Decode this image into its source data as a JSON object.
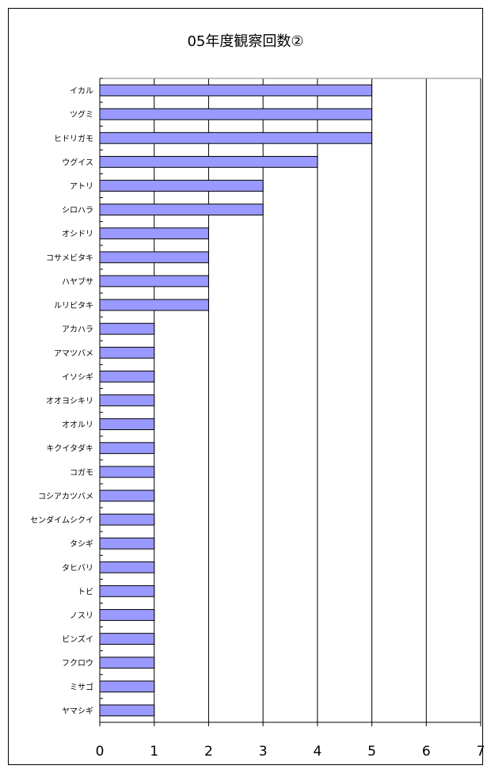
{
  "chart_data": {
    "type": "bar",
    "orientation": "horizontal",
    "title": "05年度観察回数②",
    "categories": [
      "イカル",
      "ツグミ",
      "ヒドリガモ",
      "ウグイス",
      "アトリ",
      "シロハラ",
      "オシドリ",
      "コサメビタキ",
      "ハヤブサ",
      "ルリビタキ",
      "アカハラ",
      "アマツバメ",
      "イソシギ",
      "オオヨシキリ",
      "オオルリ",
      "キクイタダキ",
      "コガモ",
      "コシアカツバメ",
      "センダイムシクイ",
      "タシギ",
      "タヒバリ",
      "トビ",
      "ノスリ",
      "ビンズイ",
      "フクロウ",
      "ミサゴ",
      "ヤマシギ"
    ],
    "values": [
      5,
      5,
      5,
      4,
      3,
      3,
      2,
      2,
      2,
      2,
      1,
      1,
      1,
      1,
      1,
      1,
      1,
      1,
      1,
      1,
      1,
      1,
      1,
      1,
      1,
      1,
      1
    ],
    "xlim": [
      0,
      7
    ],
    "x_ticks": [
      "0",
      "1",
      "2",
      "3",
      "4",
      "5",
      "6",
      "7"
    ],
    "grid": "vertical",
    "legend": "none",
    "bar_color": "#9999ff",
    "bar_edge_color": "#000000"
  }
}
